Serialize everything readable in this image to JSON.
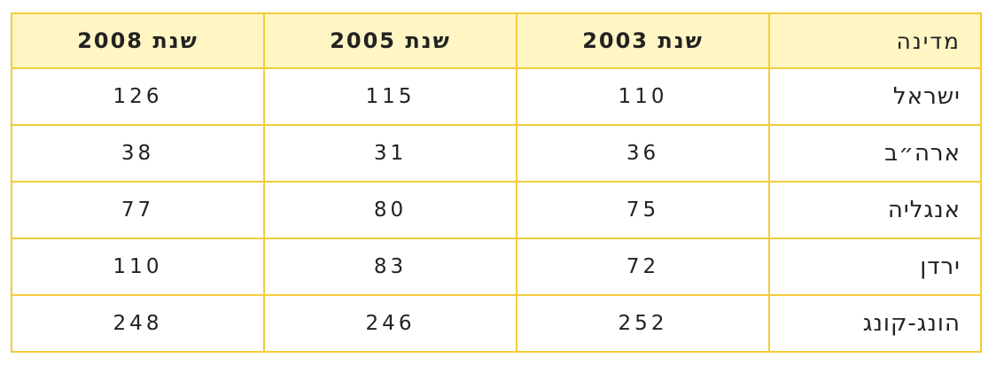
{
  "table": {
    "headers": [
      "מדינה",
      "שנת 2003",
      "שנת 2005",
      "שנת 2008"
    ],
    "rows": [
      {
        "country": "ישראל",
        "y2003": "110",
        "y2005": "115",
        "y2008": "126"
      },
      {
        "country": "ארה״ב",
        "y2003": "36",
        "y2005": "31",
        "y2008": "38"
      },
      {
        "country": "אנגליה",
        "y2003": "75",
        "y2005": "80",
        "y2008": "77"
      },
      {
        "country": "ירדן",
        "y2003": "72",
        "y2005": "83",
        "y2008": "110"
      },
      {
        "country": "הונג-קונג",
        "y2003": "252",
        "y2005": "246",
        "y2008": "248"
      }
    ]
  },
  "colors": {
    "border": "#f2cc3a",
    "header_background": "#fff6c4",
    "text": "#222222"
  }
}
